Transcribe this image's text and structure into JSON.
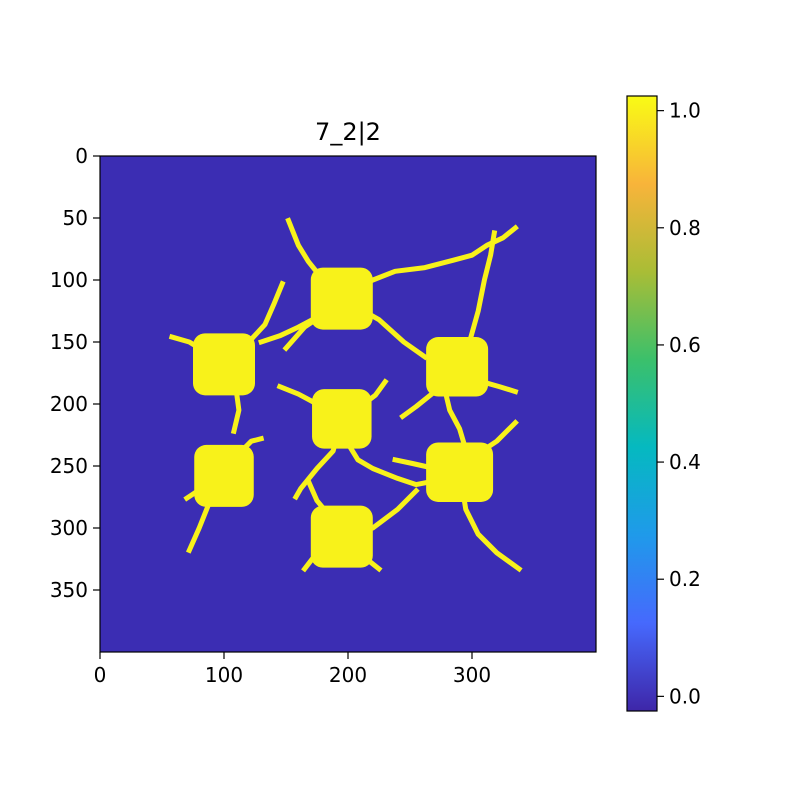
{
  "chart_data": {
    "type": "heatmap",
    "title": "7_2|2",
    "xlabel": "",
    "ylabel": "",
    "image_size": [
      400,
      400
    ],
    "xlim": [
      0,
      400
    ],
    "ylim": [
      400,
      0
    ],
    "xticks": [
      0,
      100,
      200,
      300
    ],
    "yticks": [
      0,
      50,
      100,
      150,
      200,
      250,
      300,
      350
    ],
    "value_range": [
      0,
      1
    ],
    "colorbar_ticks": [
      "0.0",
      "0.2",
      "0.4",
      "0.6",
      "0.8",
      "1.0"
    ],
    "colors": {
      "background": "#3b2db3",
      "foreground": "#f8f21a",
      "colormap": [
        "#3e26a8",
        "#4669fd",
        "#1f9aea",
        "#05b9c0",
        "#3bc06b",
        "#a9bd36",
        "#f8b43a",
        "#f9fb15"
      ]
    },
    "blobs": [
      {
        "cx": 195,
        "cy": 115,
        "w": 50,
        "h": 50,
        "value": 1
      },
      {
        "cx": 100,
        "cy": 168,
        "w": 50,
        "h": 50,
        "value": 1
      },
      {
        "cx": 288,
        "cy": 170,
        "w": 50,
        "h": 48,
        "value": 1
      },
      {
        "cx": 195,
        "cy": 212,
        "w": 48,
        "h": 48,
        "value": 1
      },
      {
        "cx": 100,
        "cy": 258,
        "w": 48,
        "h": 50,
        "value": 1
      },
      {
        "cx": 290,
        "cy": 255,
        "w": 54,
        "h": 48,
        "value": 1
      },
      {
        "cx": 195,
        "cy": 307,
        "w": 50,
        "h": 50,
        "value": 1
      }
    ],
    "filaments": [
      [
        [
          195,
          115
        ],
        [
          180,
          100
        ],
        [
          168,
          85
        ],
        [
          160,
          72
        ],
        [
          152,
          52
        ]
      ],
      [
        [
          195,
          115
        ],
        [
          215,
          102
        ],
        [
          238,
          93
        ],
        [
          262,
          90
        ],
        [
          285,
          84
        ],
        [
          300,
          80
        ],
        [
          312,
          72
        ],
        [
          325,
          66
        ],
        [
          335,
          58
        ]
      ],
      [
        [
          195,
          115
        ],
        [
          175,
          130
        ],
        [
          160,
          138
        ],
        [
          145,
          145
        ],
        [
          130,
          150
        ]
      ],
      [
        [
          195,
          115
        ],
        [
          180,
          128
        ],
        [
          165,
          138
        ],
        [
          150,
          155
        ]
      ],
      [
        [
          195,
          115
        ],
        [
          225,
          132
        ],
        [
          245,
          150
        ],
        [
          262,
          162
        ]
      ],
      [
        [
          100,
          168
        ],
        [
          120,
          150
        ],
        [
          133,
          136
        ],
        [
          140,
          120
        ],
        [
          147,
          103
        ]
      ],
      [
        [
          100,
          168
        ],
        [
          85,
          158
        ],
        [
          72,
          150
        ],
        [
          58,
          146
        ]
      ],
      [
        [
          100,
          168
        ],
        [
          110,
          190
        ],
        [
          112,
          205
        ],
        [
          108,
          222
        ]
      ],
      [
        [
          288,
          170
        ],
        [
          298,
          150
        ],
        [
          305,
          125
        ],
        [
          310,
          100
        ],
        [
          315,
          80
        ],
        [
          318,
          62
        ]
      ],
      [
        [
          288,
          170
        ],
        [
          270,
          190
        ],
        [
          255,
          202
        ],
        [
          244,
          210
        ]
      ],
      [
        [
          288,
          170
        ],
        [
          308,
          182
        ],
        [
          322,
          186
        ],
        [
          335,
          190
        ]
      ],
      [
        [
          288,
          170
        ],
        [
          278,
          188
        ],
        [
          282,
          205
        ],
        [
          290,
          220
        ],
        [
          296,
          240
        ]
      ],
      [
        [
          195,
          212
        ],
        [
          175,
          200
        ],
        [
          160,
          192
        ],
        [
          145,
          186
        ]
      ],
      [
        [
          195,
          212
        ],
        [
          210,
          202
        ],
        [
          222,
          193
        ],
        [
          230,
          182
        ]
      ],
      [
        [
          195,
          212
        ],
        [
          200,
          232
        ],
        [
          208,
          245
        ],
        [
          220,
          252
        ],
        [
          240,
          260
        ],
        [
          255,
          265
        ],
        [
          270,
          262
        ],
        [
          290,
          255
        ]
      ],
      [
        [
          195,
          212
        ],
        [
          188,
          238
        ],
        [
          175,
          252
        ],
        [
          162,
          268
        ],
        [
          158,
          275
        ]
      ],
      [
        [
          100,
          258
        ],
        [
          112,
          240
        ],
        [
          122,
          230
        ],
        [
          130,
          228
        ]
      ],
      [
        [
          100,
          258
        ],
        [
          88,
          280
        ],
        [
          80,
          300
        ],
        [
          72,
          318
        ]
      ],
      [
        [
          100,
          258
        ],
        [
          82,
          268
        ],
        [
          70,
          276
        ]
      ],
      [
        [
          290,
          255
        ],
        [
          305,
          240
        ],
        [
          320,
          230
        ],
        [
          335,
          215
        ]
      ],
      [
        [
          290,
          255
        ],
        [
          295,
          285
        ],
        [
          305,
          305
        ],
        [
          320,
          320
        ],
        [
          338,
          333
        ]
      ],
      [
        [
          290,
          255
        ],
        [
          270,
          252
        ],
        [
          252,
          248
        ],
        [
          238,
          245
        ]
      ],
      [
        [
          195,
          307
        ],
        [
          185,
          290
        ],
        [
          175,
          278
        ],
        [
          168,
          262
        ]
      ],
      [
        [
          195,
          307
        ],
        [
          220,
          300
        ],
        [
          240,
          285
        ],
        [
          255,
          270
        ]
      ],
      [
        [
          195,
          307
        ],
        [
          175,
          320
        ],
        [
          165,
          333
        ]
      ],
      [
        [
          195,
          307
        ],
        [
          215,
          325
        ],
        [
          225,
          333
        ]
      ]
    ]
  }
}
